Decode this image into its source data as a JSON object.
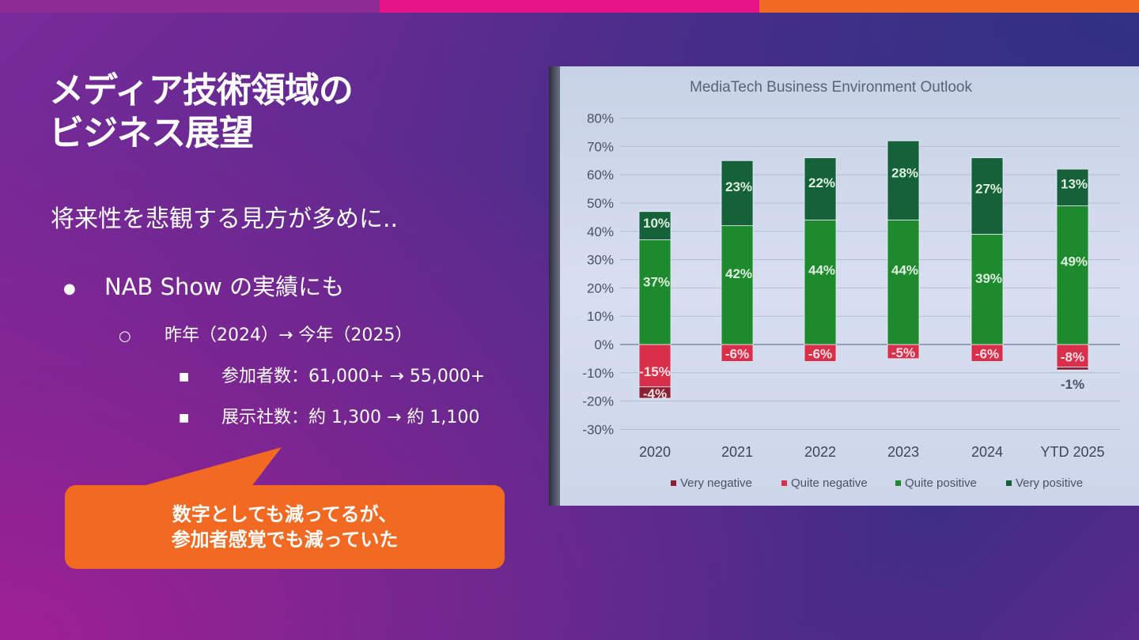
{
  "slide": {
    "title_line1": "メディア技術領域の",
    "title_line2": "ビジネス展望",
    "subtitle": "将来性を悲観する見方が多めに..",
    "bullet1": "NAB Show の実績にも",
    "bullet2": "昨年（2024）→ 今年（2025）",
    "bullet3a": "参加者数：61,000+ → 55,000+",
    "bullet3b": "展示社数：約 1,300 → 約 1,100",
    "callout_line1": "数字としても減ってるが、",
    "callout_line2": "参加者感覚でも減っていた"
  },
  "colors": {
    "bar_top_1": "#8e2c96",
    "bar_top_2": "#e8158a",
    "bar_top_3": "#f26a22",
    "callout": "#f26a22",
    "very_negative": "#8a2030",
    "quite_negative": "#d8304a",
    "quite_positive": "#1e8a2e",
    "very_positive": "#14613a"
  },
  "chart_data": {
    "type": "bar",
    "stacked": true,
    "title": "MediaTech Business Environment Outlook",
    "categories": [
      "2020",
      "2021",
      "2022",
      "2023",
      "2024",
      "YTD 2025"
    ],
    "ylim": [
      -30,
      80
    ],
    "yticks": [
      -30,
      -20,
      -10,
      0,
      10,
      20,
      30,
      40,
      50,
      60,
      70,
      80
    ],
    "ytick_labels": [
      "-30%",
      "-20%",
      "-10%",
      "0%",
      "10%",
      "20%",
      "30%",
      "40%",
      "50%",
      "60%",
      "70%",
      "80%"
    ],
    "grid": true,
    "legend": "bottom",
    "series": [
      {
        "name": "Very negative",
        "values": [
          -4,
          0,
          0,
          0,
          0,
          -1
        ],
        "labels": [
          "-4%",
          "",
          "",
          "",
          "",
          "-1%"
        ]
      },
      {
        "name": "Quite negative",
        "values": [
          -15,
          -6,
          -6,
          -5,
          -6,
          -8
        ],
        "labels": [
          "-15%",
          "-6%",
          "-6%",
          "-5%",
          "-6%",
          "-8%"
        ]
      },
      {
        "name": "Quite positive",
        "values": [
          37,
          42,
          44,
          44,
          39,
          49
        ],
        "labels": [
          "37%",
          "42%",
          "44%",
          "44%",
          "39%",
          "49%"
        ]
      },
      {
        "name": "Very positive",
        "values": [
          10,
          23,
          22,
          28,
          27,
          13
        ],
        "labels": [
          "10%",
          "23%",
          "22%",
          "28%",
          "27%",
          "13%"
        ]
      }
    ]
  }
}
